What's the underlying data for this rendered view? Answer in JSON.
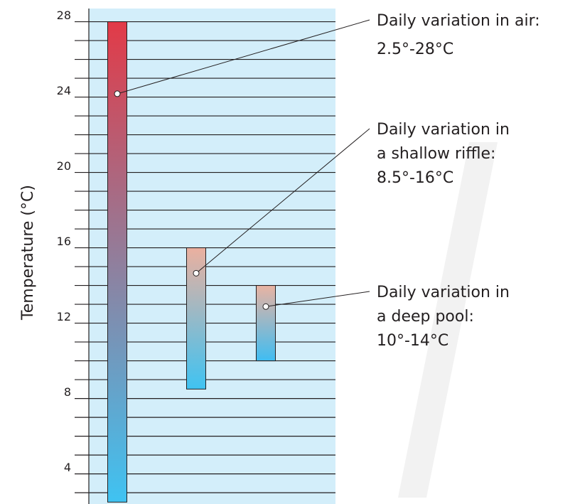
{
  "chart_data": {
    "type": "range_bar",
    "y_label": "Temperature (°C)",
    "ylim": [
      2.4,
      28.7
    ],
    "yticks": [
      4,
      8,
      12,
      16,
      20,
      24,
      28
    ],
    "yminorticks": [
      3,
      5,
      6,
      7,
      9,
      10,
      11,
      13,
      14,
      15,
      17,
      18,
      19,
      21,
      22,
      23,
      25,
      26,
      27
    ],
    "grid": true,
    "background": "#d3eefa",
    "series": [
      {
        "low": 2.5,
        "high": 28,
        "colors": [
          "#e23a47",
          "#3fc3f2"
        ],
        "annotation": [
          "Daily variation in air:",
          "2.5°-28°C"
        ]
      },
      {
        "low": 8.5,
        "high": 16,
        "colors": [
          "#ebb09f",
          "#3fc3f2"
        ],
        "annotation": [
          "Daily variation in",
          "a shallow riffle:",
          "8.5°-16°C"
        ]
      },
      {
        "low": 10,
        "high": 14,
        "colors": [
          "#e9b3a2",
          "#3fbdf2"
        ],
        "annotation": [
          "Daily variation in",
          "a deep pool:",
          "10°-14°C"
        ]
      }
    ]
  }
}
